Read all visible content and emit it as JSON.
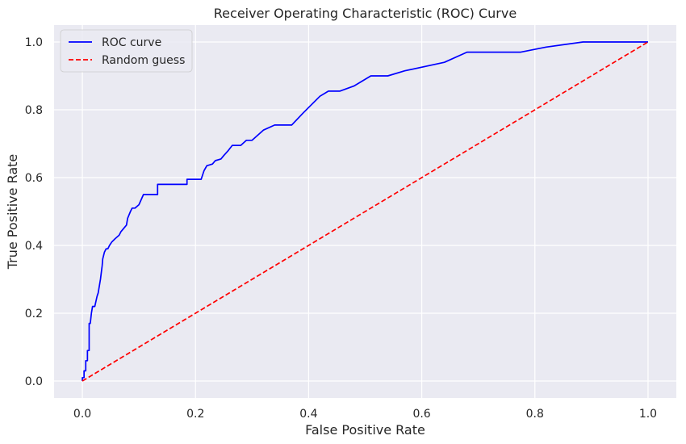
{
  "chart_data": {
    "type": "line",
    "title": "Receiver Operating Characteristic (ROC) Curve",
    "xlabel": "False Positive Rate",
    "ylabel": "True Positive Rate",
    "xlim": [
      -0.05,
      1.05
    ],
    "ylim": [
      -0.05,
      1.05
    ],
    "xticks": [
      0.0,
      0.2,
      0.4,
      0.6,
      0.8,
      1.0
    ],
    "yticks": [
      0.0,
      0.2,
      0.4,
      0.6,
      0.8,
      1.0
    ],
    "xtick_labels": [
      "0.0",
      "0.2",
      "0.4",
      "0.6",
      "0.8",
      "1.0"
    ],
    "ytick_labels": [
      "0.0",
      "0.2",
      "0.4",
      "0.6",
      "0.8",
      "1.0"
    ],
    "grid": true,
    "legend_position": "top-left",
    "background_color": "#eaeaf2",
    "grid_color": "#ffffff",
    "series": [
      {
        "name": "ROC curve",
        "color": "#0000ff",
        "style": "solid",
        "x": [
          0.0,
          0.0,
          0.003,
          0.003,
          0.006,
          0.006,
          0.009,
          0.009,
          0.012,
          0.012,
          0.014,
          0.016,
          0.018,
          0.022,
          0.026,
          0.028,
          0.032,
          0.035,
          0.036,
          0.039,
          0.042,
          0.045,
          0.048,
          0.052,
          0.058,
          0.065,
          0.068,
          0.078,
          0.08,
          0.085,
          0.088,
          0.093,
          0.1,
          0.108,
          0.12,
          0.133,
          0.133,
          0.185,
          0.185,
          0.21,
          0.215,
          0.22,
          0.23,
          0.235,
          0.245,
          0.25,
          0.258,
          0.265,
          0.28,
          0.29,
          0.3,
          0.31,
          0.32,
          0.34,
          0.37,
          0.39,
          0.405,
          0.42,
          0.435,
          0.455,
          0.48,
          0.51,
          0.54,
          0.57,
          0.64,
          0.68,
          0.775,
          0.82,
          0.885,
          1.0
        ],
        "y": [
          0.0,
          0.01,
          0.01,
          0.03,
          0.03,
          0.06,
          0.06,
          0.09,
          0.09,
          0.17,
          0.17,
          0.2,
          0.22,
          0.22,
          0.25,
          0.26,
          0.3,
          0.34,
          0.36,
          0.38,
          0.39,
          0.39,
          0.4,
          0.41,
          0.42,
          0.43,
          0.44,
          0.46,
          0.48,
          0.5,
          0.51,
          0.51,
          0.52,
          0.55,
          0.55,
          0.55,
          0.58,
          0.58,
          0.595,
          0.595,
          0.62,
          0.635,
          0.64,
          0.65,
          0.655,
          0.665,
          0.68,
          0.695,
          0.695,
          0.71,
          0.71,
          0.725,
          0.74,
          0.755,
          0.755,
          0.79,
          0.815,
          0.84,
          0.855,
          0.855,
          0.87,
          0.9,
          0.9,
          0.915,
          0.94,
          0.97,
          0.97,
          0.985,
          1.0,
          1.0
        ]
      },
      {
        "name": "Random guess",
        "color": "#ff0000",
        "style": "dashed",
        "x": [
          0.0,
          1.0
        ],
        "y": [
          0.0,
          1.0
        ]
      }
    ]
  }
}
